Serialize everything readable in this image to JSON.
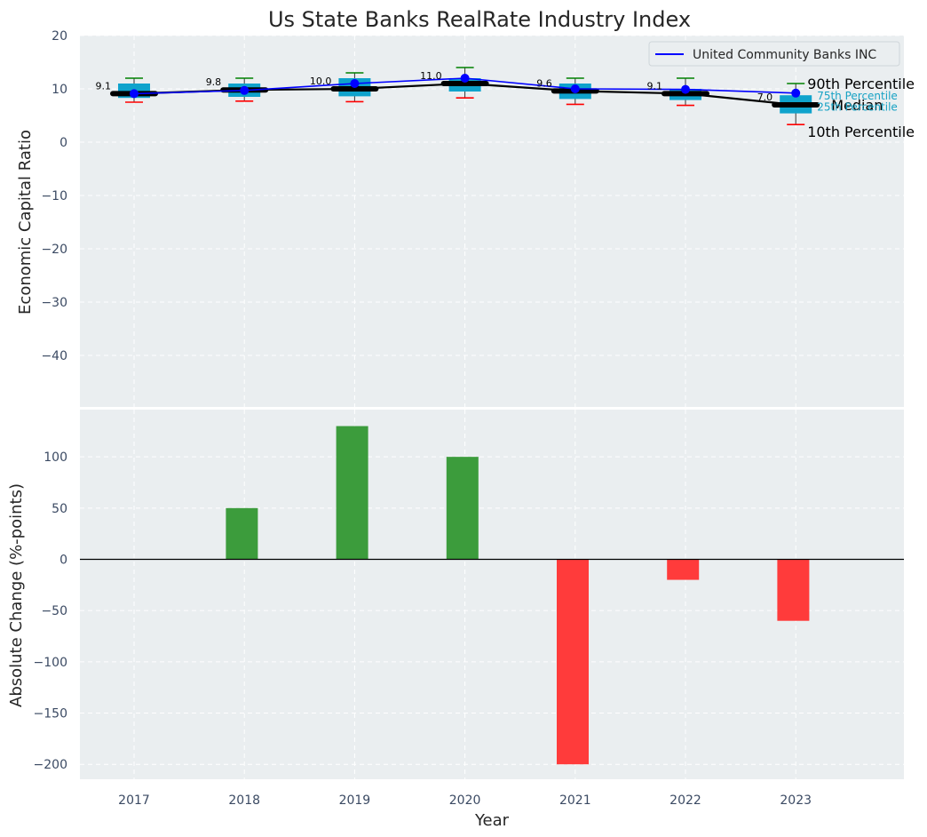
{
  "chart_data": [
    {
      "type": "box",
      "title": "Us State Banks RealRate Industry Index",
      "xlabel": "",
      "ylabel": "Economic Capital Ratio",
      "ylim": [
        -50,
        20
      ],
      "yticks": [
        20,
        10,
        0,
        -10,
        -20,
        -30,
        -40
      ],
      "grid": true,
      "categories": [
        "2017",
        "2018",
        "2019",
        "2020",
        "2021",
        "2022",
        "2023"
      ],
      "boxes": [
        {
          "p10": 7.5,
          "p25": 8.3,
          "median": 9.1,
          "p75": 11.0,
          "p90": 12.0
        },
        {
          "p10": 7.7,
          "p25": 8.5,
          "median": 9.8,
          "p75": 11.0,
          "p90": 12.0
        },
        {
          "p10": 7.6,
          "p25": 8.6,
          "median": 10.0,
          "p75": 12.0,
          "p90": 13.0
        },
        {
          "p10": 8.3,
          "p25": 9.5,
          "median": 11.0,
          "p75": 12.0,
          "p90": 14.0
        },
        {
          "p10": 7.1,
          "p25": 8.1,
          "median": 9.6,
          "p75": 11.0,
          "p90": 12.0
        },
        {
          "p10": 6.9,
          "p25": 7.9,
          "median": 9.1,
          "p75": 10.0,
          "p90": 12.0
        },
        {
          "p10": 3.3,
          "p25": 5.4,
          "median": 7.0,
          "p75": 8.8,
          "p90": 11.0
        }
      ],
      "median_labels": [
        "9.1",
        "9.8",
        "10.0",
        "11.0",
        "9.6",
        "9.1",
        "7.0"
      ],
      "series": [
        {
          "name": "United Community Banks INC",
          "values": [
            9.1,
            9.7,
            11.0,
            12.0,
            10.0,
            9.9,
            9.2
          ],
          "color": "#0000ff"
        }
      ],
      "median_line_color": "#000000",
      "legend_position": "top-right",
      "annotations": {
        "p90": "90th Percentile",
        "p75": "75th Percentile",
        "median": "Median",
        "p25": "25th Percentile",
        "p10": "10th Percentile"
      }
    },
    {
      "type": "bar",
      "xlabel": "Year",
      "ylabel": "Absolute Change (%-points)",
      "ylim": [
        -215,
        150
      ],
      "yticks": [
        100,
        50,
        0,
        -50,
        -100,
        -150,
        -200
      ],
      "grid": true,
      "categories": [
        "2017",
        "2018",
        "2019",
        "2020",
        "2021",
        "2022",
        "2023"
      ],
      "values": [
        0,
        50,
        130,
        100,
        -200,
        -20,
        -60
      ],
      "positive_color": "#3c9c3c",
      "negative_color": "#ff3b3b"
    }
  ],
  "colors": {
    "plot_bg": "#eaeef0",
    "box_fill": "#0fa3cc",
    "whisker_high": "#008000",
    "whisker_low": "#ff0000"
  }
}
